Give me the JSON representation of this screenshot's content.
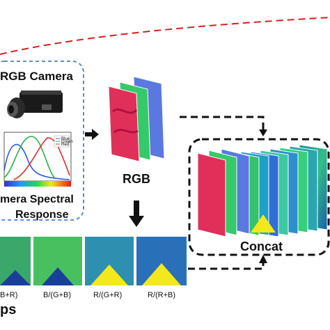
{
  "camera": {
    "title": "RGB Camera",
    "spectral_line1": "mera Spectral",
    "spectral_line2": "Response",
    "legend": [
      "Blue",
      "Green",
      "Red"
    ]
  },
  "stack_label": "RGB",
  "concat_label": "Concat",
  "maps": {
    "labels": [
      "B+R)",
      "B/(G+B)",
      "R/(G+R)",
      "R/(R+B)"
    ],
    "title_fragment": "ps"
  },
  "colors": {
    "dashed_red": "#d62020",
    "dashed_blue": "#5a8bd6",
    "frame_red": "#e0305a",
    "frame_green": "#35c96a",
    "frame_blue": "#5a78e0",
    "arrow": "#111111",
    "yellow_tri": "#f2e81a"
  }
}
